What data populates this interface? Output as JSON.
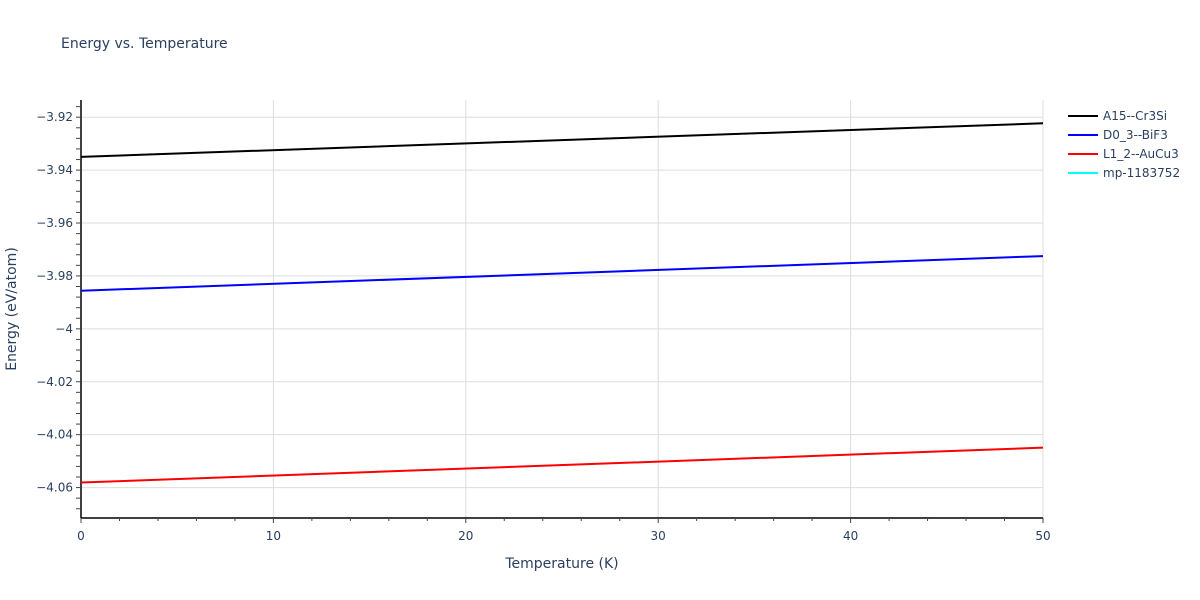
{
  "chart_data": {
    "type": "line",
    "title": "Energy vs. Temperature",
    "xlabel": "Temperature (K)",
    "ylabel": "Energy (eV/atom)",
    "xlim": [
      0,
      50
    ],
    "ylim": [
      -4.0715,
      -3.9135
    ],
    "x_ticks": [
      0,
      10,
      20,
      30,
      40,
      50
    ],
    "y_ticks": [
      -3.92,
      -3.94,
      -3.96,
      -3.98,
      -4,
      -4.02,
      -4.04,
      -4.06
    ],
    "y_tick_labels": [
      "−3.92",
      "−3.94",
      "−3.96",
      "−3.98",
      "−4",
      "−4.02",
      "−4.04",
      "−4.06"
    ],
    "grid": true,
    "legend_position": "right-top",
    "series": [
      {
        "name": "A15--Cr3Si",
        "color": "#000000",
        "x": [
          0,
          50
        ],
        "y": [
          -3.935,
          -3.9223
        ]
      },
      {
        "name": "D0_3--BiF3",
        "color": "#0000ff",
        "x": [
          0,
          50
        ],
        "y": [
          -3.9856,
          -3.9725
        ]
      },
      {
        "name": "L1_2--AuCu3",
        "color": "#ff0000",
        "x": [
          0,
          50
        ],
        "y": [
          -4.0581,
          -4.0449
        ]
      },
      {
        "name": "mp-1183752",
        "color": "#00ffff",
        "x": [],
        "y": []
      }
    ]
  }
}
